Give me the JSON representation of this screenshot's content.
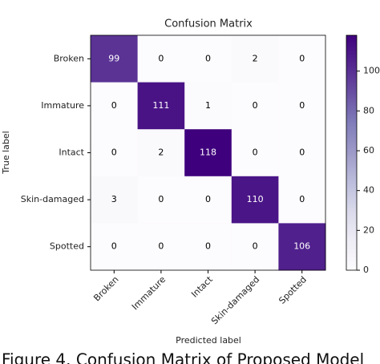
{
  "chart_data": {
    "type": "heatmap",
    "title": "Confusion Matrix",
    "xlabel": "Predicted label",
    "ylabel": "True label",
    "x_categories": [
      "Broken",
      "Immature",
      "Intact",
      "Skin-damaged",
      "Spotted"
    ],
    "y_categories": [
      "Broken",
      "Immature",
      "Intact",
      "Skin-damaged",
      "Spotted"
    ],
    "values": [
      [
        99,
        0,
        0,
        2,
        0
      ],
      [
        0,
        111,
        1,
        0,
        0
      ],
      [
        0,
        2,
        118,
        0,
        0
      ],
      [
        3,
        0,
        0,
        110,
        0
      ],
      [
        0,
        0,
        0,
        0,
        106
      ]
    ],
    "colormap": "Purples",
    "clim": [
      0,
      118
    ],
    "cticks": [
      0,
      20,
      40,
      60,
      80,
      100
    ],
    "caption": "Figure 4. Confusion Matrix of Proposed Model"
  }
}
